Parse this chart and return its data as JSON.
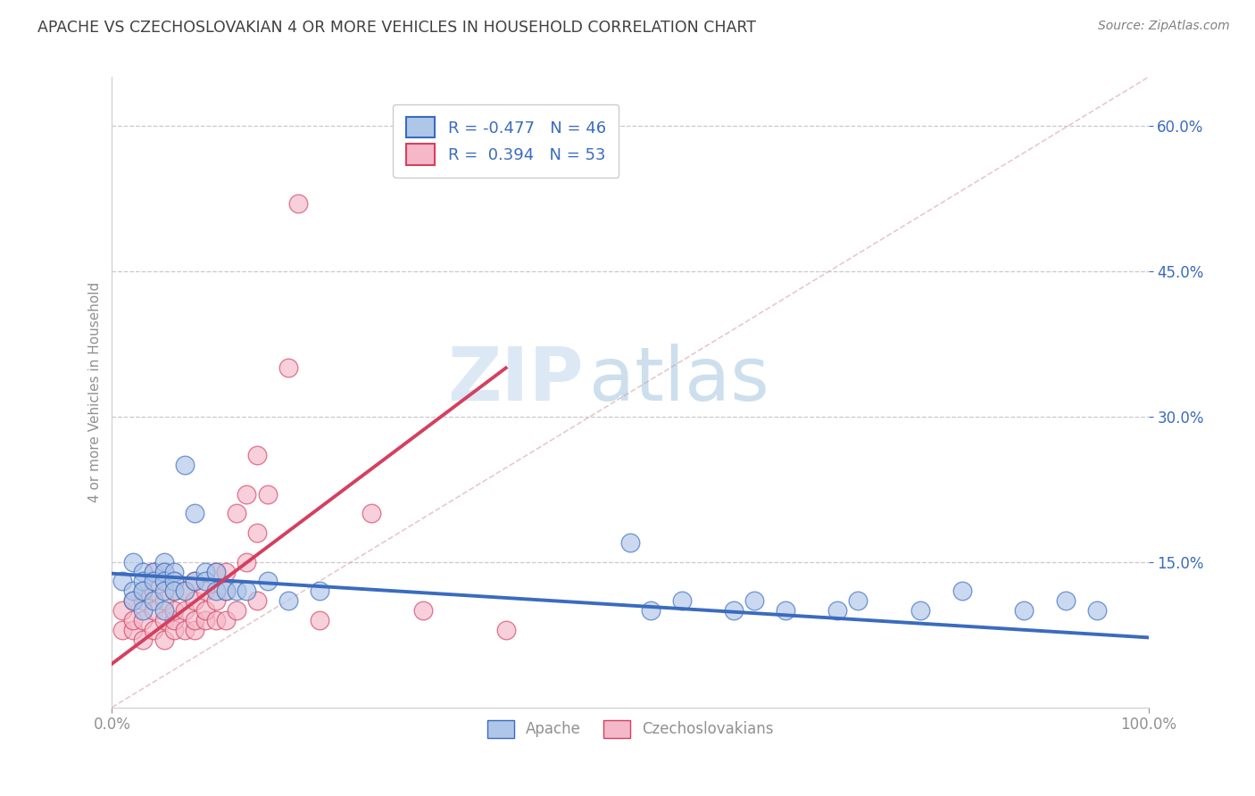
{
  "title": "APACHE VS CZECHOSLOVAKIAN 4 OR MORE VEHICLES IN HOUSEHOLD CORRELATION CHART",
  "source": "Source: ZipAtlas.com",
  "ylabel": "4 or more Vehicles in Household",
  "xlim": [
    0,
    1
  ],
  "ylim": [
    0,
    0.65
  ],
  "xticks": [
    0.0,
    1.0
  ],
  "xticklabels": [
    "0.0%",
    "100.0%"
  ],
  "yticks": [
    0.15,
    0.3,
    0.45,
    0.6
  ],
  "yticklabels": [
    "15.0%",
    "30.0%",
    "45.0%",
    "60.0%"
  ],
  "apache_R": -0.477,
  "apache_N": 46,
  "czech_R": 0.394,
  "czech_N": 53,
  "apache_color": "#aec6e8",
  "czech_color": "#f4b8c8",
  "apache_line_color": "#3a6bbf",
  "czech_line_color": "#d44060",
  "legend_label_apache": "Apache",
  "legend_label_czech": "Czechoslovakians",
  "watermark_zip": "ZIP",
  "watermark_atlas": "atlas",
  "background_color": "#ffffff",
  "grid_color": "#c8c8d0",
  "title_color": "#404040",
  "source_color": "#808080",
  "axis_color": "#909090",
  "ytick_color": "#3a6bbf",
  "apache_line_x0": 0.0,
  "apache_line_x1": 1.0,
  "apache_line_y0": 0.138,
  "apache_line_y1": 0.072,
  "czech_line_x0": 0.0,
  "czech_line_x1": 0.38,
  "czech_line_y0": 0.045,
  "czech_line_y1": 0.35,
  "apache_x": [
    0.01,
    0.02,
    0.02,
    0.02,
    0.03,
    0.03,
    0.03,
    0.03,
    0.04,
    0.04,
    0.04,
    0.05,
    0.05,
    0.05,
    0.05,
    0.05,
    0.06,
    0.06,
    0.06,
    0.07,
    0.07,
    0.08,
    0.08,
    0.09,
    0.09,
    0.1,
    0.1,
    0.11,
    0.12,
    0.13,
    0.15,
    0.17,
    0.2,
    0.5,
    0.52,
    0.55,
    0.6,
    0.62,
    0.65,
    0.7,
    0.72,
    0.78,
    0.82,
    0.88,
    0.92,
    0.95
  ],
  "apache_y": [
    0.13,
    0.15,
    0.12,
    0.11,
    0.14,
    0.13,
    0.12,
    0.1,
    0.14,
    0.13,
    0.11,
    0.15,
    0.14,
    0.13,
    0.12,
    0.1,
    0.14,
    0.13,
    0.12,
    0.25,
    0.12,
    0.2,
    0.13,
    0.14,
    0.13,
    0.14,
    0.12,
    0.12,
    0.12,
    0.12,
    0.13,
    0.11,
    0.12,
    0.17,
    0.1,
    0.11,
    0.1,
    0.11,
    0.1,
    0.1,
    0.11,
    0.1,
    0.12,
    0.1,
    0.11,
    0.1
  ],
  "czech_x": [
    0.01,
    0.01,
    0.02,
    0.02,
    0.02,
    0.03,
    0.03,
    0.03,
    0.03,
    0.04,
    0.04,
    0.04,
    0.04,
    0.05,
    0.05,
    0.05,
    0.05,
    0.05,
    0.06,
    0.06,
    0.06,
    0.06,
    0.06,
    0.07,
    0.07,
    0.07,
    0.08,
    0.08,
    0.08,
    0.08,
    0.09,
    0.09,
    0.09,
    0.1,
    0.1,
    0.1,
    0.11,
    0.11,
    0.11,
    0.12,
    0.12,
    0.13,
    0.13,
    0.14,
    0.14,
    0.14,
    0.15,
    0.17,
    0.18,
    0.2,
    0.25,
    0.3,
    0.38
  ],
  "czech_y": [
    0.08,
    0.1,
    0.08,
    0.09,
    0.11,
    0.07,
    0.09,
    0.11,
    0.12,
    0.08,
    0.1,
    0.12,
    0.14,
    0.07,
    0.09,
    0.11,
    0.13,
    0.14,
    0.08,
    0.09,
    0.1,
    0.12,
    0.13,
    0.08,
    0.1,
    0.12,
    0.08,
    0.09,
    0.11,
    0.13,
    0.09,
    0.1,
    0.12,
    0.09,
    0.11,
    0.14,
    0.09,
    0.12,
    0.14,
    0.1,
    0.2,
    0.15,
    0.22,
    0.11,
    0.18,
    0.26,
    0.22,
    0.35,
    0.52,
    0.09,
    0.2,
    0.1,
    0.08
  ]
}
